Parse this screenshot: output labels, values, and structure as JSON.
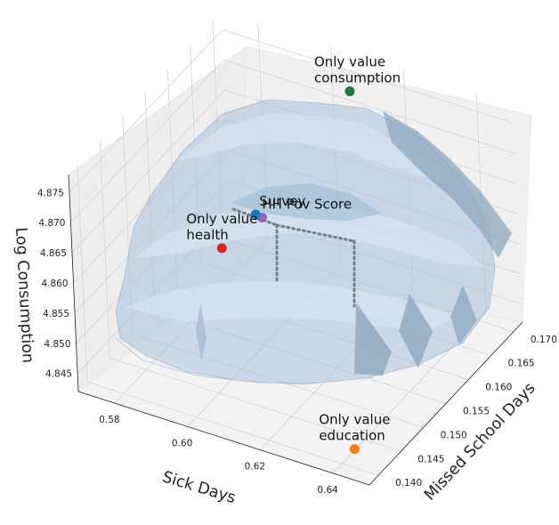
{
  "chart_data": {
    "type": "scatter",
    "subtype": "3d-surface-with-points",
    "title": "",
    "xlabel": "Sick Days",
    "ylabel": "Missed School Days",
    "zlabel": "Log Consumption",
    "xlim": [
      0.57,
      0.65
    ],
    "ylim": [
      0.138,
      0.172
    ],
    "zlim": [
      4.842,
      4.878
    ],
    "x_ticks": [
      "0.64",
      "0.62",
      "0.60",
      "0.58"
    ],
    "y_ticks": [
      "0.140",
      "0.145",
      "0.150",
      "0.155",
      "0.160",
      "0.165",
      "0.170"
    ],
    "z_ticks": [
      "4.845",
      "4.850",
      "4.855",
      "4.860",
      "4.865",
      "4.870",
      "4.875"
    ],
    "grid": true,
    "surface": {
      "color": "#a9c3dc",
      "contours": "light-blue bands",
      "alpha": 0.55
    },
    "points": [
      {
        "label": "Only value consumption",
        "lines": [
          "Only value",
          "consumption"
        ],
        "x": 0.61,
        "y": 0.168,
        "z": 4.8757,
        "color": "#1f7a46"
      },
      {
        "label": "HH Pov Score",
        "lines": [
          "HH Pov Score"
        ],
        "x": 0.605,
        "y": 0.152,
        "z": 4.8665,
        "color": "#8c64bd"
      },
      {
        "label": "Survey",
        "lines": [
          "Survey"
        ],
        "x": 0.598,
        "y": 0.156,
        "z": 4.8625,
        "color": "#1f77b4"
      },
      {
        "label": "Only value health",
        "lines": [
          "Only value",
          "health"
        ],
        "x": 0.575,
        "y": 0.166,
        "z": 4.8445,
        "color": "#d62728"
      },
      {
        "label": "Only value education",
        "lines": [
          "Only value",
          "education"
        ],
        "x": 0.645,
        "y": 0.139,
        "z": 4.8462,
        "color": "#ff7f0e"
      }
    ]
  }
}
